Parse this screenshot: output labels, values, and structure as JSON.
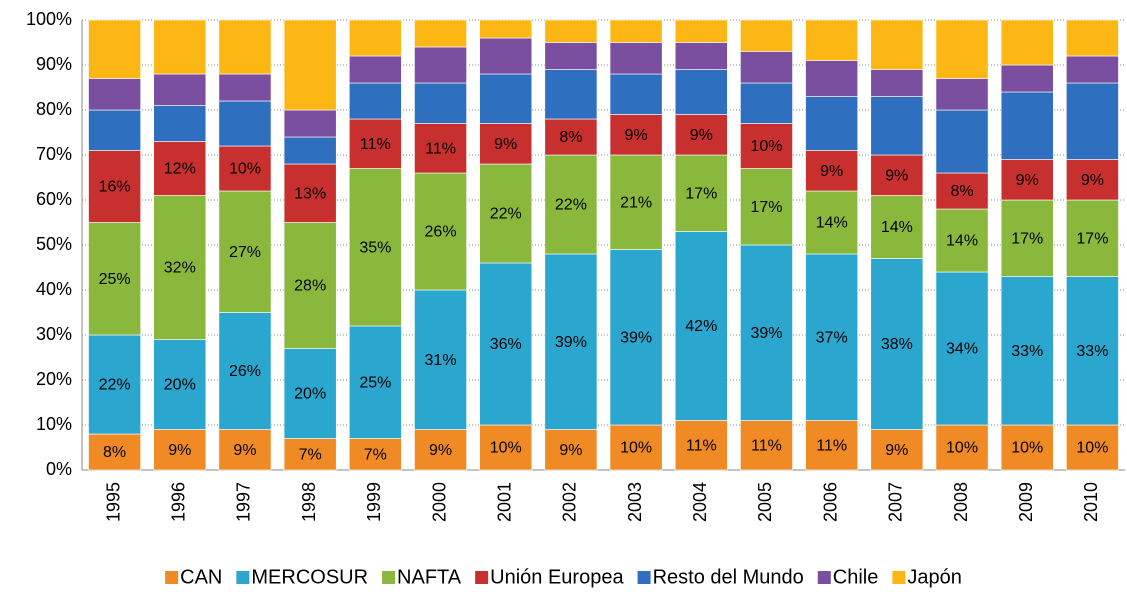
{
  "chart_data": {
    "type": "stacked_bar",
    "categories": [
      "1995",
      "1996",
      "1997",
      "1998",
      "1999",
      "2000",
      "2001",
      "2002",
      "2003",
      "2004",
      "2005",
      "2006",
      "2007",
      "2008",
      "2009",
      "2010"
    ],
    "series": [
      {
        "name": "CAN",
        "color": "#f08a24",
        "values": [
          8,
          9,
          9,
          7,
          7,
          9,
          10,
          9,
          10,
          11,
          11,
          11,
          9,
          10,
          10,
          10
        ],
        "value_labels": [
          "8%",
          "9%",
          "9%",
          "7%",
          "7%",
          "9%",
          "10%",
          "9%",
          "10%",
          "11%",
          "11%",
          "11%",
          "9%",
          "10%",
          "10%",
          "10%"
        ]
      },
      {
        "name": "MERCOSUR",
        "color": "#2aa6cf",
        "values": [
          22,
          20,
          26,
          20,
          25,
          31,
          36,
          39,
          39,
          42,
          39,
          37,
          38,
          34,
          33,
          33
        ],
        "value_labels": [
          "22%",
          "20%",
          "26%",
          "20%",
          "25%",
          "31%",
          "36%",
          "39%",
          "39%",
          "42%",
          "39%",
          "37%",
          "38%",
          "34%",
          "33%",
          "33%"
        ]
      },
      {
        "name": "NAFTA",
        "color": "#8ab83c",
        "values": [
          25,
          32,
          27,
          28,
          35,
          26,
          22,
          22,
          21,
          17,
          17,
          14,
          14,
          14,
          17,
          17
        ],
        "value_labels": [
          "25%",
          "32%",
          "27%",
          "28%",
          "35%",
          "26%",
          "22%",
          "22%",
          "21%",
          "17%",
          "17%",
          "14%",
          "14%",
          "14%",
          "17%",
          "17%"
        ]
      },
      {
        "name": "Unión Europea",
        "color": "#c8302f",
        "values": [
          16,
          12,
          10,
          13,
          11,
          11,
          9,
          8,
          9,
          9,
          10,
          9,
          9,
          8,
          9,
          9
        ],
        "value_labels": [
          "16%",
          "12%",
          "10%",
          "13%",
          "11%",
          "11%",
          "9%",
          "8%",
          "9%",
          "9%",
          "10%",
          "9%",
          "9%",
          "8%",
          "9%",
          "9%"
        ]
      },
      {
        "name": "Resto del Mundo",
        "color": "#2f6fbf",
        "values": [
          9,
          8,
          10,
          6,
          8,
          9,
          11,
          11,
          9,
          10,
          9,
          12,
          13,
          14,
          15,
          17
        ]
      },
      {
        "name": "Chile",
        "color": "#7a4f9f",
        "values": [
          7,
          7,
          6,
          6,
          6,
          8,
          8,
          6,
          7,
          6,
          7,
          8,
          6,
          7,
          6,
          6
        ]
      },
      {
        "name": "Japón",
        "color": "#fdb714",
        "values": [
          13,
          12,
          12,
          20,
          8,
          6,
          4,
          5,
          5,
          5,
          7,
          9,
          11,
          13,
          10,
          8
        ]
      }
    ],
    "ylim": [
      0,
      100
    ],
    "yticks": [
      {
        "value": 0,
        "label": "0%"
      },
      {
        "value": 10,
        "label": "10%"
      },
      {
        "value": 20,
        "label": "20%"
      },
      {
        "value": 30,
        "label": "30%"
      },
      {
        "value": 40,
        "label": "40%"
      },
      {
        "value": 50,
        "label": "50%"
      },
      {
        "value": 60,
        "label": "60%"
      },
      {
        "value": 70,
        "label": "70%"
      },
      {
        "value": 80,
        "label": "80%"
      },
      {
        "value": 90,
        "label": "90%"
      },
      {
        "value": 100,
        "label": "100%"
      }
    ],
    "grid": true,
    "legend": "bottom"
  }
}
